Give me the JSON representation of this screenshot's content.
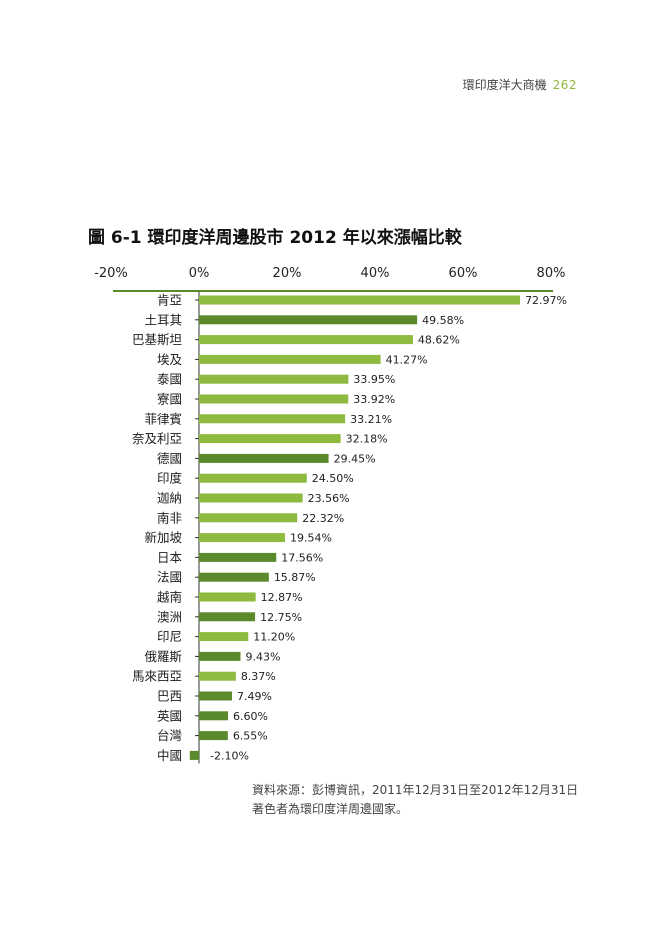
{
  "header": {
    "book_title": "環印度洋大商機",
    "page_number": "262"
  },
  "figure": {
    "title": "圖 6-1 環印度洋周邊股市 2012 年以來漲幅比較"
  },
  "chart_data": {
    "type": "bar",
    "orientation": "horizontal",
    "xlim": [
      -20,
      80
    ],
    "x_ticks": [
      "-20%",
      "0%",
      "20%",
      "40%",
      "60%",
      "80%"
    ],
    "x_axis_position": "top",
    "grid": false,
    "legend": "none",
    "value_format": "percent, 2 decimals",
    "colors": {
      "light_green": "#8dba3f",
      "dark_green": "#5b8a2c"
    },
    "categories": [
      "肯亞",
      "土耳其",
      "巴基斯坦",
      "埃及",
      "泰國",
      "寮國",
      "菲律賓",
      "奈及利亞",
      "德國",
      "印度",
      "迦納",
      "南非",
      "新加坡",
      "日本",
      "法國",
      "越南",
      "澳洲",
      "印尼",
      "俄羅斯",
      "馬來西亞",
      "巴西",
      "英國",
      "台灣",
      "中國"
    ],
    "values": [
      72.97,
      49.58,
      48.62,
      41.27,
      33.95,
      33.92,
      33.21,
      32.18,
      29.45,
      24.5,
      23.56,
      22.32,
      19.54,
      17.56,
      15.87,
      12.87,
      12.75,
      11.2,
      9.43,
      8.37,
      7.49,
      6.6,
      6.55,
      -2.1
    ],
    "value_labels": [
      "72.97%",
      "49.58%",
      "48.62%",
      "41.27%",
      "33.95%",
      "33.92%",
      "33.21%",
      "32.18%",
      "29.45%",
      "24.50%",
      "23.56%",
      "22.32%",
      "19.54%",
      "17.56%",
      "15.87%",
      "12.87%",
      "12.75%",
      "11.20%",
      "9.43%",
      "8.37%",
      "7.49%",
      "6.60%",
      "6.55%",
      "-2.10%"
    ],
    "bar_color_keys": [
      "light_green",
      "dark_green",
      "light_green",
      "light_green",
      "light_green",
      "light_green",
      "light_green",
      "light_green",
      "dark_green",
      "light_green",
      "light_green",
      "light_green",
      "light_green",
      "dark_green",
      "dark_green",
      "light_green",
      "dark_green",
      "light_green",
      "dark_green",
      "light_green",
      "dark_green",
      "dark_green",
      "dark_green",
      "dark_green"
    ]
  },
  "source": {
    "line1": "資料來源：彭博資訊，2011年12月31日至2012年12月31日",
    "line2": "著色者為環印度洋周邊國家。"
  }
}
